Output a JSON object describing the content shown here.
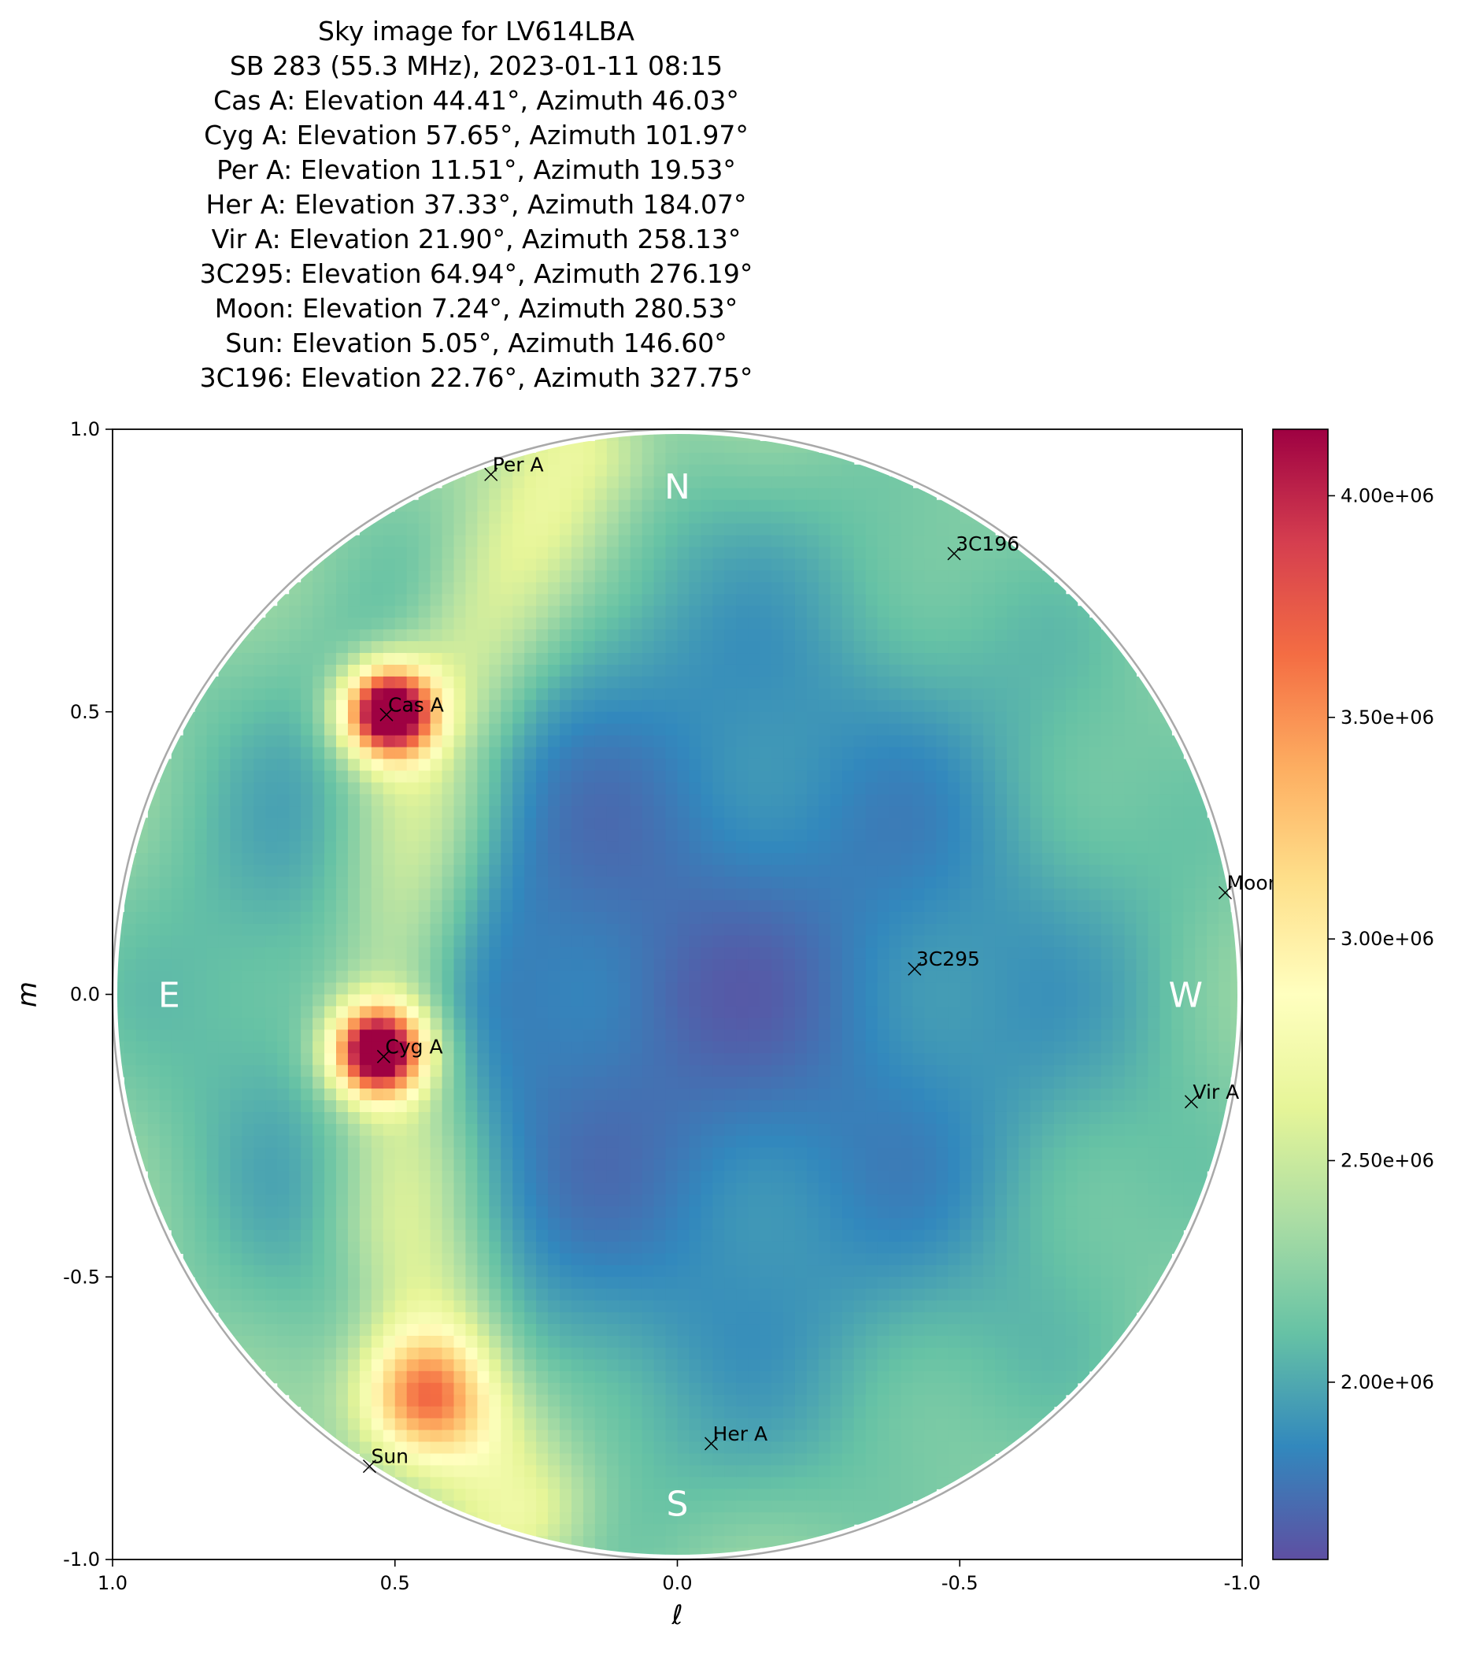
{
  "title_lines": [
    "Sky image for LV614LBA",
    "SB 283 (55.3 MHz), 2023-01-11 08:15",
    "Cas A: Elevation 44.41°, Azimuth 46.03°",
    "Cyg A: Elevation 57.65°, Azimuth 101.97°",
    "Per A: Elevation 11.51°, Azimuth 19.53°",
    "Her A: Elevation 37.33°, Azimuth 184.07°",
    "Vir A: Elevation 21.90°, Azimuth 258.13°",
    "3C295: Elevation 64.94°, Azimuth 276.19°",
    "Moon: Elevation 7.24°, Azimuth 280.53°",
    "Sun: Elevation 5.05°, Azimuth 146.60°",
    "3C196: Elevation 22.76°, Azimuth 327.75°"
  ],
  "chart_data": {
    "type": "heatmap",
    "xlabel": "ℓ",
    "ylabel": "m",
    "xlim": [
      1.0,
      -1.0
    ],
    "ylim": [
      -1.0,
      1.0
    ],
    "xticks": [
      1.0,
      0.5,
      0.0,
      -0.5,
      -1.0
    ],
    "xtick_labels": [
      "1.0",
      "0.5",
      "0.0",
      "-0.5",
      "-1.0"
    ],
    "yticks": [
      1.0,
      0.5,
      0.0,
      -0.5,
      -1.0
    ],
    "ytick_labels": [
      "1.0",
      "0.5",
      "0.0",
      "-0.5",
      "-1.0"
    ],
    "colormap": "Spectral_r",
    "colorbar": {
      "min": 1600000,
      "max": 4150000,
      "ticks": [
        2000000,
        2500000,
        3000000,
        3500000,
        4000000
      ],
      "tick_labels": [
        "2.00e+06",
        "2.50e+06",
        "3.00e+06",
        "3.50e+06",
        "4.00e+06"
      ]
    },
    "compass": [
      {
        "label": "N",
        "l": 0.0,
        "m": 0.9
      },
      {
        "label": "S",
        "l": 0.0,
        "m": -0.9
      },
      {
        "label": "E",
        "l": 0.9,
        "m": 0.0
      },
      {
        "label": "W",
        "l": -0.9,
        "m": 0.0
      }
    ],
    "sources": [
      {
        "name": "Cas A",
        "l": 0.515,
        "m": 0.495
      },
      {
        "name": "Cyg A",
        "l": 0.52,
        "m": -0.11
      },
      {
        "name": "Per A",
        "l": 0.33,
        "m": 0.92
      },
      {
        "name": "Her A",
        "l": -0.06,
        "m": -0.795
      },
      {
        "name": "Vir A",
        "l": -0.91,
        "m": -0.19
      },
      {
        "name": "3C295",
        "l": -0.42,
        "m": 0.045
      },
      {
        "name": "Moon",
        "l": -0.97,
        "m": 0.18
      },
      {
        "name": "Sun",
        "l": 0.545,
        "m": -0.835
      },
      {
        "name": "3C196",
        "l": -0.49,
        "m": 0.78
      }
    ],
    "features": [
      {
        "name": "Cas A",
        "l": 0.51,
        "m": 0.5,
        "amplitude": 2300000,
        "sigma": 0.055
      },
      {
        "name": "Cyg A",
        "l": 0.53,
        "m": -0.1,
        "amplitude": 2300000,
        "sigma": 0.055
      },
      {
        "name": "Sun",
        "l": 0.45,
        "m": -0.71,
        "amplitude": 1200000,
        "sigma": 0.08
      },
      {
        "name": "Galactic plane",
        "path": [
          [
            0.18,
            0.95
          ],
          [
            0.3,
            0.75
          ],
          [
            0.45,
            0.45
          ],
          [
            0.5,
            0.0
          ],
          [
            0.48,
            -0.4
          ],
          [
            0.4,
            -0.7
          ],
          [
            0.28,
            -0.9
          ]
        ],
        "amplitude": 550000,
        "width": 0.09
      }
    ],
    "background_level": 1900000,
    "min_level": 1700000
  }
}
